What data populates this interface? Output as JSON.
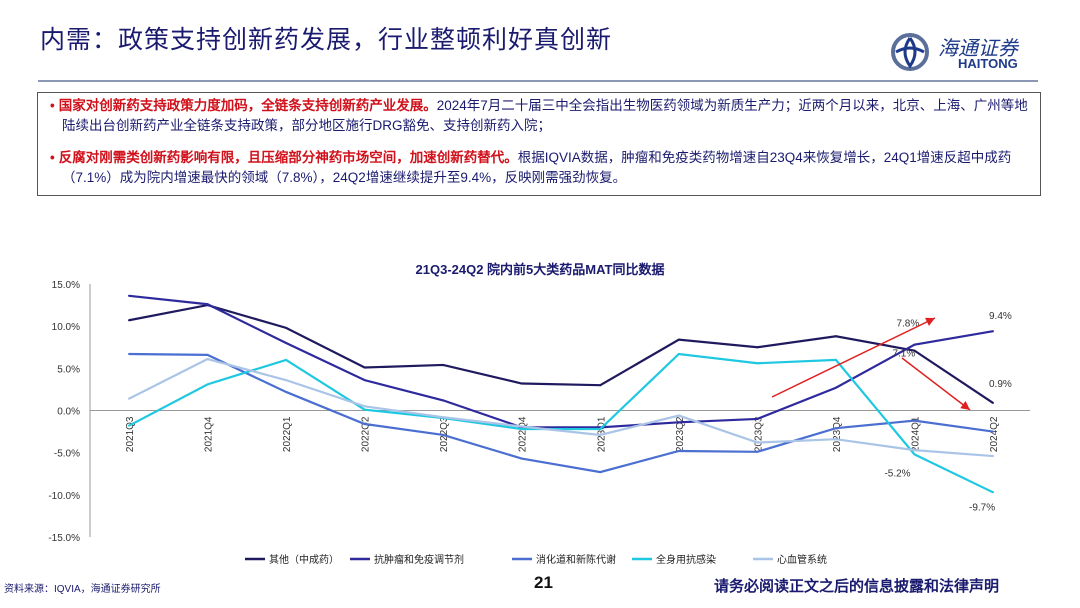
{
  "header": {
    "title": "内需：政策支持创新药发展，行业整顿利好真创新",
    "logo_cn": "海通证券",
    "logo_en": "HAITONG"
  },
  "bullets": [
    {
      "highlight": "国家对创新药支持政策力度加码，全链条支持创新药产业发展。",
      "text": "2024年7月二十届三中全会指出生物医药领域为新质生产力；近两个月以来，北京、上海、广州等地陆续出台创新药产业全链条支持政策，部分地区施行DRG豁免、支持创新药入院；"
    },
    {
      "highlight": "反腐对刚需类创新药影响有限，且压缩部分神药市场空间，加速创新药替代。",
      "text": "根据IQVIA数据，肿瘤和免疫类药物增速自23Q4来恢复增长，24Q1增速反超中成药（7.1%）成为院内增速最快的领域（7.8%），24Q2增速继续提升至9.4%，反映刚需强劲恢复。"
    }
  ],
  "chart_data": {
    "type": "line",
    "title": "21Q3-24Q2 院内前5大类药品MAT同比数据",
    "categories": [
      "2021Q3",
      "2021Q4",
      "2022Q1",
      "2022Q2",
      "2022Q3",
      "2022Q4",
      "2023Q1",
      "2023Q2",
      "2023Q3",
      "2023Q4",
      "2024Q1",
      "2024Q2"
    ],
    "ylim": [
      -15,
      15
    ],
    "yticks": [
      "15.0%",
      "10.0%",
      "5.0%",
      "0.0%",
      "-5.0%",
      "-10.0%",
      "-15.0%"
    ],
    "ytick_values": [
      15,
      10,
      5,
      0,
      -5,
      -10,
      -15
    ],
    "legend_position": "bottom",
    "series": [
      {
        "name": "其他（中成药）",
        "color": "#1f1a5e",
        "values": [
          10.7,
          12.5,
          9.8,
          5.1,
          5.4,
          3.2,
          3.0,
          8.4,
          7.5,
          8.8,
          7.1,
          0.9
        ]
      },
      {
        "name": "抗肿瘤和免疫调节剂",
        "color": "#2e2a9e",
        "values": [
          13.6,
          12.6,
          8.0,
          3.6,
          1.2,
          -2.0,
          -2.0,
          -1.4,
          -1.0,
          2.7,
          7.8,
          9.4
        ]
      },
      {
        "name": "消化道和新陈代谢",
        "color": "#4a6fd1",
        "values": [
          6.7,
          6.6,
          2.2,
          -1.6,
          -2.9,
          -5.7,
          -7.3,
          -4.8,
          -4.9,
          -2.1,
          -1.2,
          -2.5
        ]
      },
      {
        "name": "全身用抗感染",
        "color": "#1ec8e0",
        "values": [
          -1.8,
          3.1,
          6.0,
          0.1,
          -0.9,
          -2.2,
          -2.2,
          6.7,
          5.6,
          6.0,
          -5.2,
          -9.7
        ]
      },
      {
        "name": "心血管系统",
        "color": "#a9c4e6",
        "values": [
          1.4,
          6.1,
          3.6,
          0.5,
          -0.8,
          -1.9,
          -2.9,
          -0.6,
          -3.8,
          -3.4,
          -4.7,
          -5.4
        ]
      }
    ],
    "annotations": [
      {
        "text": "7.8%",
        "series": 1,
        "index": 10
      },
      {
        "text": "7.1%",
        "series": 0,
        "index": 10
      },
      {
        "text": "9.4%",
        "series": 1,
        "index": 11
      },
      {
        "text": "0.9%",
        "series": 0,
        "index": 11
      },
      {
        "text": "-5.2%",
        "series": 3,
        "index": 10
      },
      {
        "text": "-9.7%",
        "series": 3,
        "index": 11
      }
    ],
    "arrow_color": "#e02020"
  },
  "footer": {
    "source": "资料来源：IQVIA，海通证券研究所",
    "page": "21",
    "disclaimer": "请务必阅读正文之后的信息披露和法律声明"
  }
}
